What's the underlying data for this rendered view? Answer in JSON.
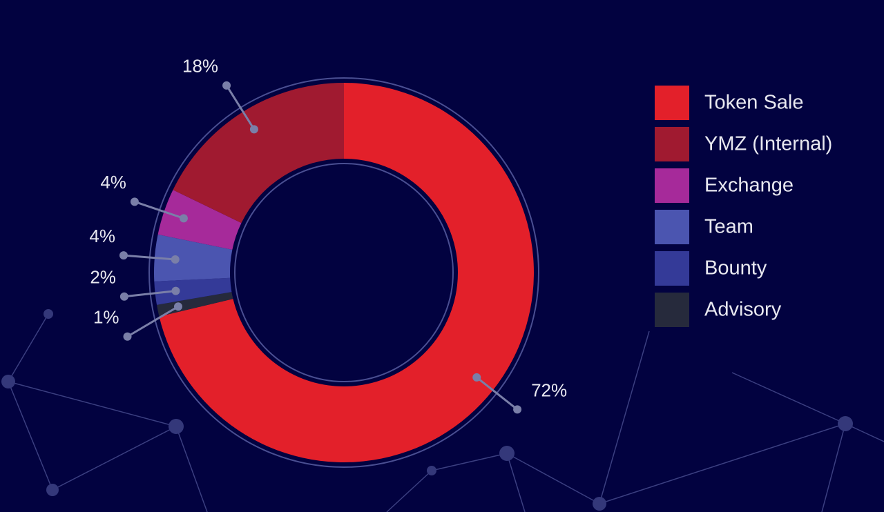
{
  "chart_data": {
    "type": "donut",
    "categories": [
      "Token Sale",
      "YMZ (Internal)",
      "Exchange",
      "Team",
      "Bounty",
      "Advisory"
    ],
    "values": [
      72,
      18,
      4,
      4,
      2,
      1
    ],
    "value_labels": [
      "72%",
      "18%",
      "4%",
      "4%",
      "2%",
      "1%"
    ],
    "colors": [
      "#e3202a",
      "#a01a30",
      "#a62a9a",
      "#4b55b0",
      "#343a98",
      "#262a3c"
    ]
  }
}
